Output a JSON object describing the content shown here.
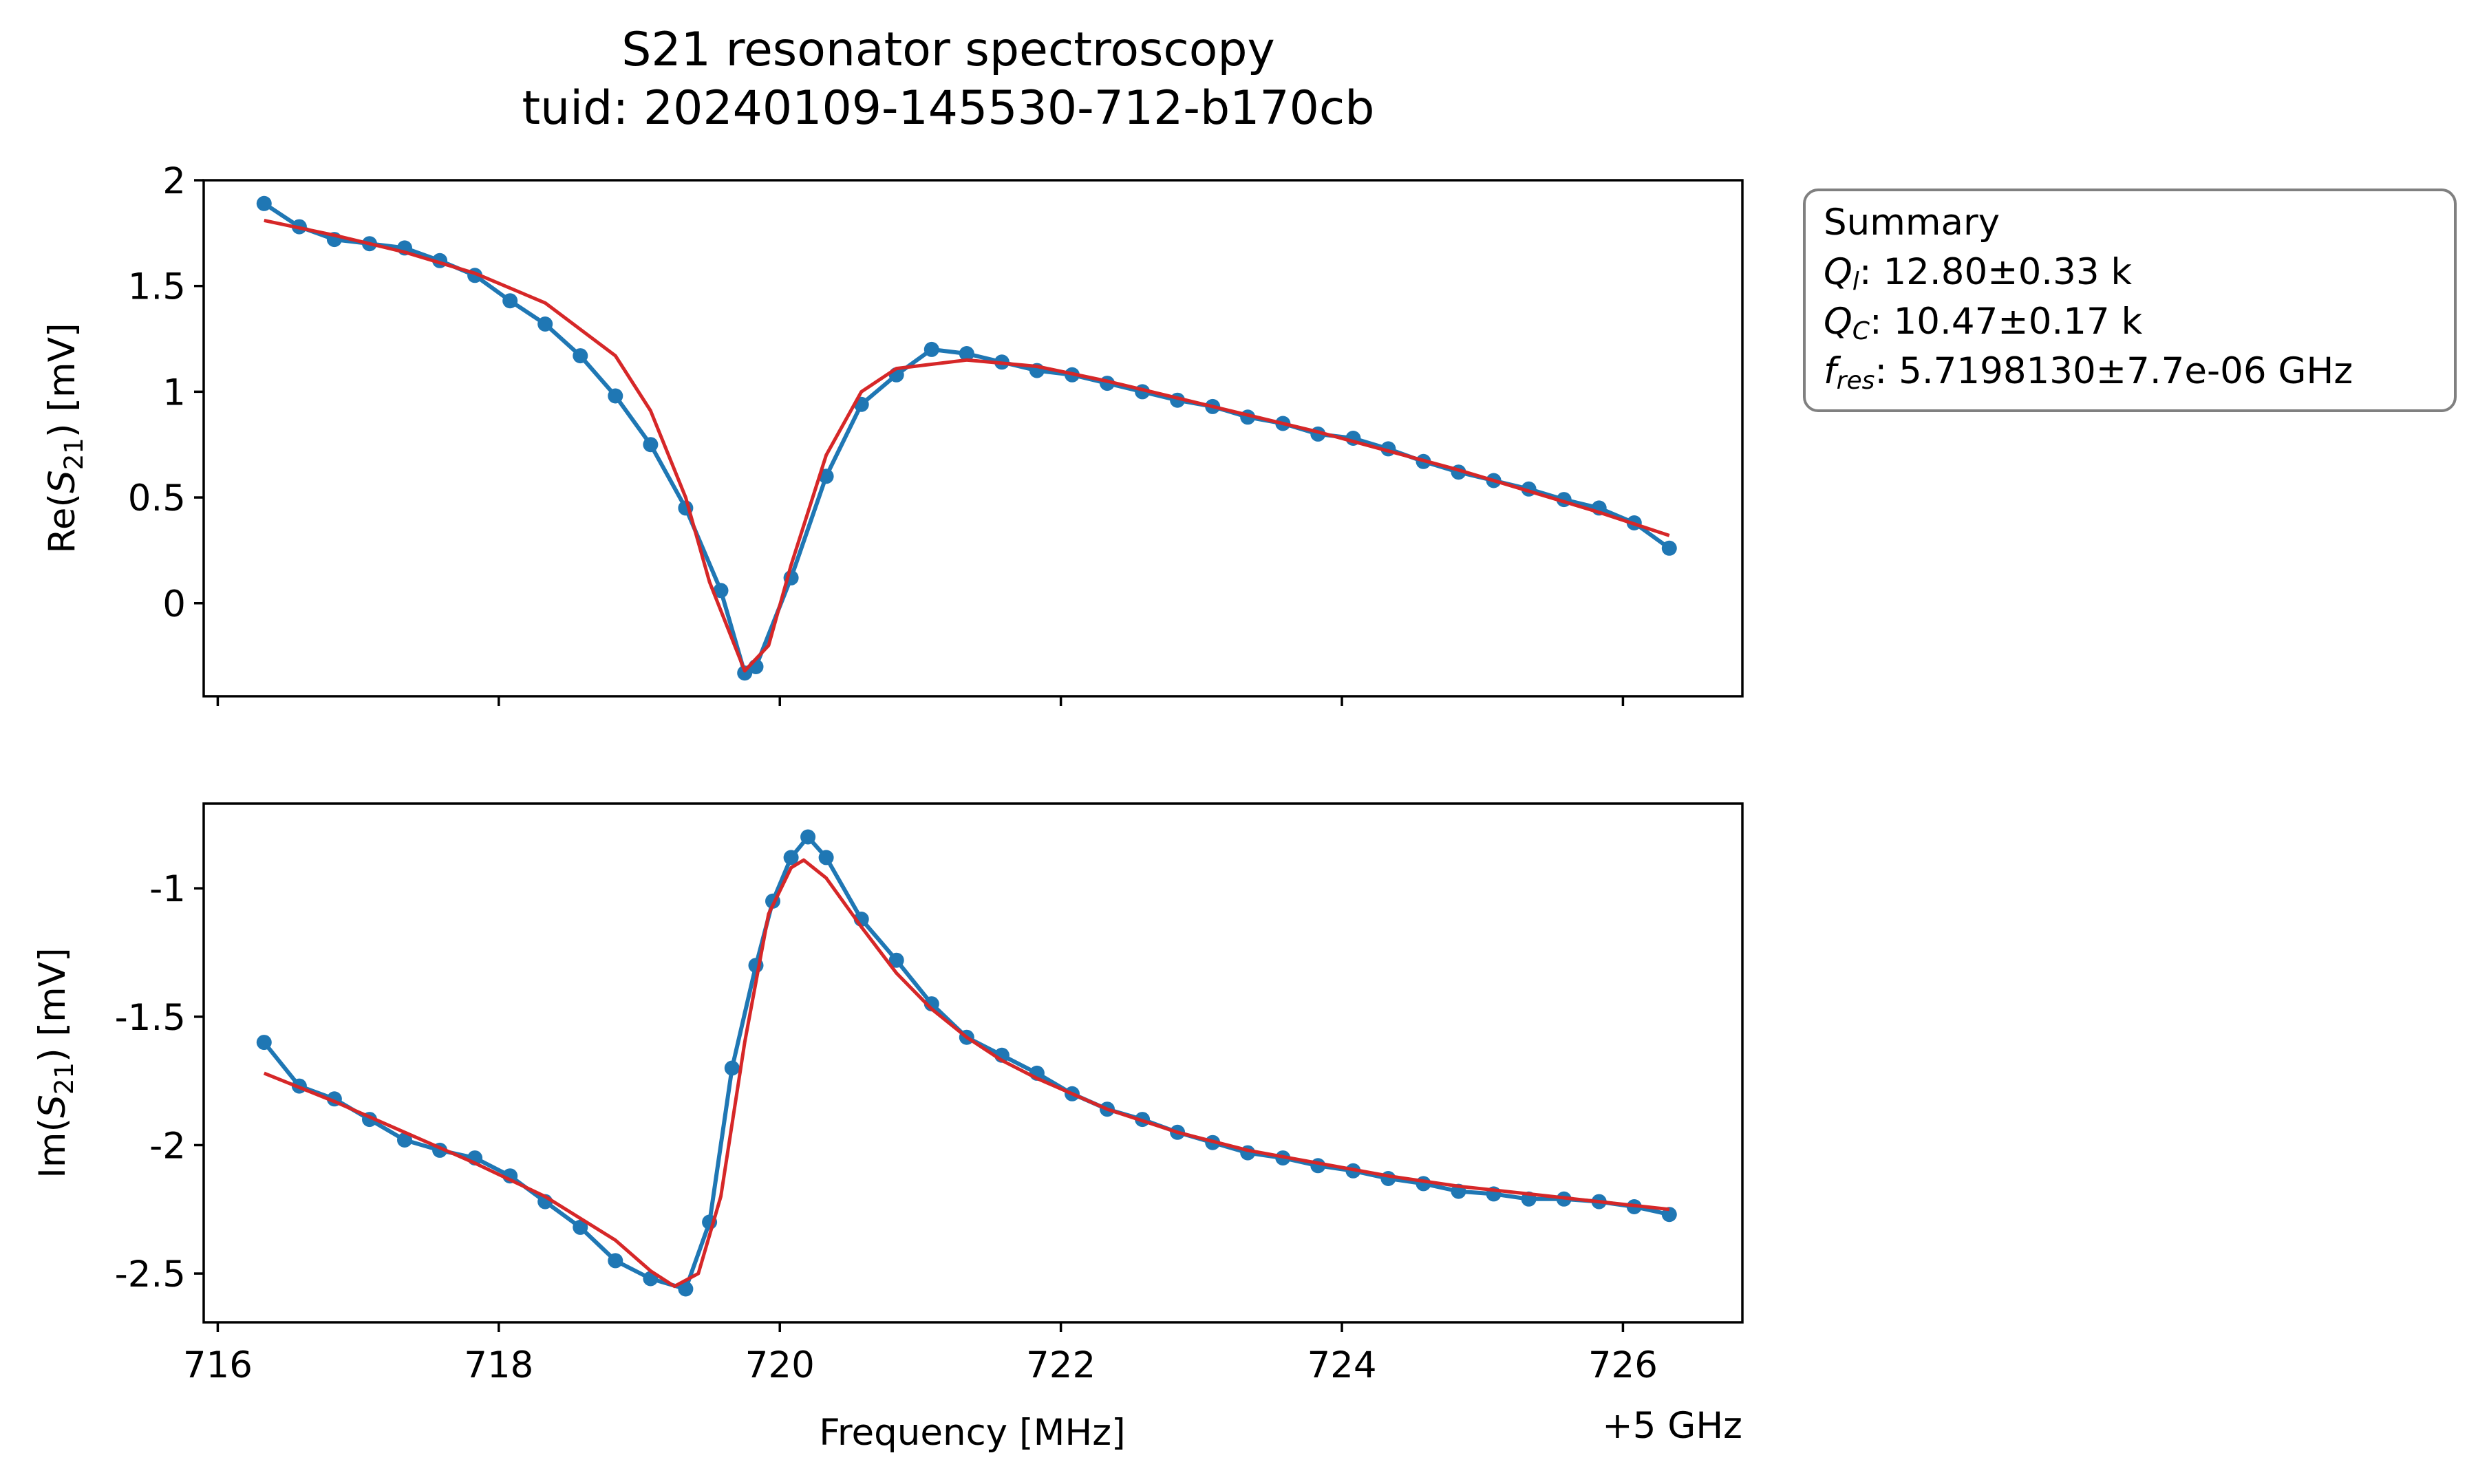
{
  "title": {
    "line1": "S21 resonator spectroscopy",
    "line2": "tuid: 20240109-145530-712-b170cb"
  },
  "summary": {
    "heading": "Summary",
    "ql_value": ": 12.80±0.33 k",
    "qc_value": ": 10.47±0.17 k",
    "fres_value": ": 5.7198130±7.7e-06 GHz"
  },
  "colors": {
    "data": "#1f77b4",
    "fit": "#d62728",
    "box_edge": "#808080"
  },
  "chart_data": [
    {
      "type": "line",
      "ylabel": "Re(S21) [mV]",
      "xlim": [
        715.9,
        726.85
      ],
      "ylim": [
        -0.44,
        2.0
      ],
      "yticks": [
        0,
        0.5,
        1,
        1.5,
        2
      ],
      "yticklabels": [
        "0",
        "0.5",
        "1",
        "1.5",
        "2"
      ],
      "grid": false,
      "series": [
        {
          "role": "data",
          "style": "line+markers",
          "x": [
            716.33,
            716.58,
            716.83,
            717.08,
            717.33,
            717.58,
            717.83,
            718.08,
            718.33,
            718.58,
            718.83,
            719.08,
            719.33,
            719.58,
            719.75,
            719.83,
            720.08,
            720.33,
            720.58,
            720.83,
            721.08,
            721.33,
            721.58,
            721.83,
            722.08,
            722.33,
            722.58,
            722.83,
            723.08,
            723.33,
            723.58,
            723.83,
            724.08,
            724.33,
            724.58,
            724.83,
            725.08,
            725.33,
            725.58,
            725.83,
            726.08,
            726.33
          ],
          "y": [
            1.89,
            1.78,
            1.72,
            1.7,
            1.68,
            1.62,
            1.55,
            1.43,
            1.32,
            1.17,
            0.98,
            0.75,
            0.45,
            0.06,
            -0.33,
            -0.3,
            0.12,
            0.6,
            0.94,
            1.08,
            1.2,
            1.18,
            1.14,
            1.1,
            1.08,
            1.04,
            1.0,
            0.96,
            0.93,
            0.88,
            0.85,
            0.8,
            0.78,
            0.73,
            0.67,
            0.62,
            0.58,
            0.54,
            0.49,
            0.45,
            0.38,
            0.26
          ]
        },
        {
          "role": "fit",
          "style": "line",
          "x": [
            716.33,
            716.83,
            717.33,
            717.83,
            718.33,
            718.83,
            719.08,
            719.33,
            719.5,
            719.75,
            719.92,
            720.08,
            720.33,
            720.58,
            720.83,
            721.33,
            721.83,
            722.33,
            722.83,
            723.33,
            723.83,
            724.33,
            724.83,
            725.33,
            725.83,
            726.33
          ],
          "y": [
            1.81,
            1.74,
            1.66,
            1.56,
            1.42,
            1.17,
            0.91,
            0.5,
            0.1,
            -0.32,
            -0.2,
            0.18,
            0.7,
            1.0,
            1.11,
            1.15,
            1.12,
            1.05,
            0.97,
            0.89,
            0.81,
            0.72,
            0.63,
            0.53,
            0.43,
            0.32
          ]
        }
      ]
    },
    {
      "type": "line",
      "xlabel": "Frequency [MHz]",
      "x_offset_label": "+5 GHz",
      "ylabel": "Im(S21) [mV]",
      "xlim": [
        715.9,
        726.85
      ],
      "ylim": [
        -2.69,
        -0.67
      ],
      "xticks": [
        716,
        718,
        720,
        722,
        724,
        726
      ],
      "xticklabels": [
        "716",
        "718",
        "720",
        "722",
        "724",
        "726"
      ],
      "yticks": [
        -1,
        -1.5,
        -2,
        -2.5
      ],
      "yticklabels": [
        "-1",
        "-1.5",
        "-2",
        "-2.5"
      ],
      "grid": false,
      "series": [
        {
          "role": "data",
          "style": "line+markers",
          "x": [
            716.33,
            716.58,
            716.83,
            717.08,
            717.33,
            717.58,
            717.83,
            718.08,
            718.33,
            718.58,
            718.83,
            719.08,
            719.33,
            719.5,
            719.66,
            719.83,
            719.95,
            720.08,
            720.2,
            720.33,
            720.58,
            720.83,
            721.08,
            721.33,
            721.58,
            721.83,
            722.08,
            722.33,
            722.58,
            722.83,
            723.08,
            723.33,
            723.58,
            723.83,
            724.08,
            724.33,
            724.58,
            724.83,
            725.08,
            725.33,
            725.58,
            725.83,
            726.08,
            726.33
          ],
          "y": [
            -1.6,
            -1.77,
            -1.82,
            -1.9,
            -1.98,
            -2.02,
            -2.05,
            -2.12,
            -2.22,
            -2.32,
            -2.45,
            -2.52,
            -2.56,
            -2.3,
            -1.7,
            -1.3,
            -1.05,
            -0.88,
            -0.8,
            -0.88,
            -1.12,
            -1.28,
            -1.45,
            -1.58,
            -1.65,
            -1.72,
            -1.8,
            -1.86,
            -1.9,
            -1.95,
            -1.99,
            -2.03,
            -2.05,
            -2.08,
            -2.1,
            -2.13,
            -2.15,
            -2.18,
            -2.19,
            -2.21,
            -2.21,
            -2.22,
            -2.24,
            -2.27
          ]
        },
        {
          "role": "fit",
          "style": "line",
          "x": [
            716.33,
            716.83,
            717.33,
            717.83,
            718.33,
            718.83,
            719.08,
            719.25,
            719.42,
            719.58,
            719.75,
            719.92,
            720.08,
            720.17,
            720.33,
            720.58,
            720.83,
            721.08,
            721.33,
            721.58,
            721.83,
            722.33,
            722.83,
            723.33,
            723.83,
            724.33,
            724.83,
            725.33,
            725.83,
            726.33
          ],
          "y": [
            -1.72,
            -1.83,
            -1.95,
            -2.07,
            -2.2,
            -2.37,
            -2.49,
            -2.55,
            -2.5,
            -2.2,
            -1.6,
            -1.1,
            -0.92,
            -0.89,
            -0.96,
            -1.15,
            -1.33,
            -1.47,
            -1.58,
            -1.67,
            -1.74,
            -1.86,
            -1.95,
            -2.02,
            -2.07,
            -2.12,
            -2.16,
            -2.19,
            -2.22,
            -2.25
          ]
        }
      ]
    }
  ]
}
